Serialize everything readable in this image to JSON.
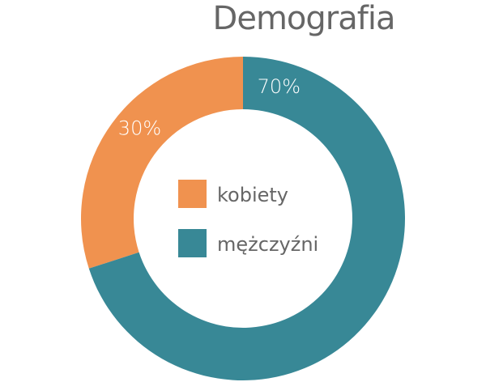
{
  "chart_data": {
    "type": "pie",
    "subtype": "donut",
    "title": "Demografia",
    "categories": [
      "kobiety",
      "mężczyźni"
    ],
    "values": [
      30,
      70
    ],
    "data_labels": [
      "30%",
      "70%"
    ],
    "colors": [
      "#F0924F",
      "#388896"
    ],
    "legend": {
      "placement": "center",
      "entries": [
        "kobiety",
        "mężczyźni"
      ]
    }
  }
}
